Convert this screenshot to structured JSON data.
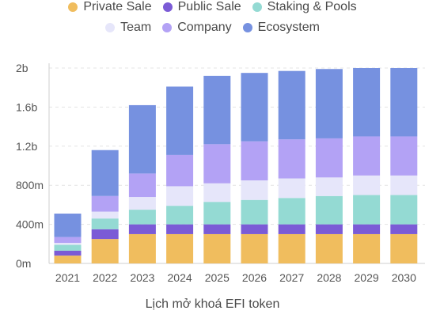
{
  "chart_data": {
    "type": "bar",
    "stacked": true,
    "title": "",
    "caption": "Lịch mở khoá EFI token",
    "xlabel": "",
    "ylabel": "",
    "categories": [
      "2021",
      "2022",
      "2023",
      "2024",
      "2025",
      "2026",
      "2027",
      "2028",
      "2029",
      "2030"
    ],
    "ylim": [
      0,
      2000000000
    ],
    "yticks": [
      {
        "value": 0,
        "label": "0m"
      },
      {
        "value": 400000000,
        "label": "400m"
      },
      {
        "value": 800000000,
        "label": "800m"
      },
      {
        "value": 1200000000,
        "label": "1.2b"
      },
      {
        "value": 1600000000,
        "label": "1.6b"
      },
      {
        "value": 2000000000,
        "label": "2b"
      }
    ],
    "grid": true,
    "legend_position": "top",
    "series": [
      {
        "name": "Private Sale",
        "color": "#f0bd5e",
        "values": [
          80000000,
          250000000,
          300000000,
          300000000,
          300000000,
          300000000,
          300000000,
          300000000,
          300000000,
          300000000
        ]
      },
      {
        "name": "Public Sale",
        "color": "#7b5bd6",
        "values": [
          50000000,
          100000000,
          100000000,
          100000000,
          100000000,
          100000000,
          100000000,
          100000000,
          100000000,
          100000000
        ]
      },
      {
        "name": "Staking & Pools",
        "color": "#94dad3",
        "values": [
          60000000,
          110000000,
          150000000,
          190000000,
          230000000,
          250000000,
          270000000,
          290000000,
          300000000,
          300000000
        ]
      },
      {
        "name": "Team",
        "color": "#e6e6fa",
        "values": [
          20000000,
          70000000,
          130000000,
          200000000,
          190000000,
          200000000,
          200000000,
          190000000,
          200000000,
          200000000
        ]
      },
      {
        "name": "Company",
        "color": "#b3a2f5",
        "values": [
          60000000,
          160000000,
          240000000,
          320000000,
          400000000,
          400000000,
          400000000,
          400000000,
          400000000,
          400000000
        ]
      },
      {
        "name": "Ecosystem",
        "color": "#7691e0",
        "values": [
          240000000,
          470000000,
          700000000,
          700000000,
          700000000,
          700000000,
          700000000,
          710000000,
          700000000,
          700000000
        ]
      }
    ]
  }
}
